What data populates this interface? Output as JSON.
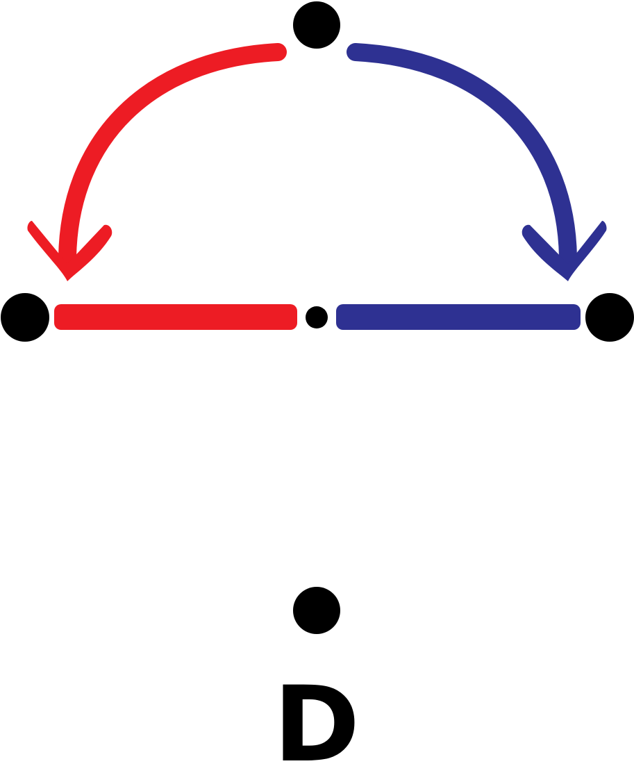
{
  "diagram": {
    "label": "D",
    "colors": {
      "left_arc": "#ED1C24",
      "right_arc": "#2E3192",
      "left_segment": "#ED1C24",
      "right_segment": "#2E3192",
      "points": "#000000",
      "label": "#000000",
      "background": "#FFFFFF"
    }
  }
}
